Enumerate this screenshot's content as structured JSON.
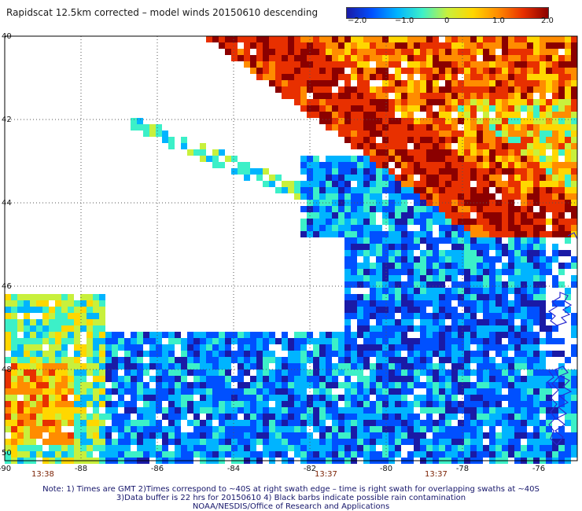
{
  "title": "Rapidscat 12.5km corrected – model winds 20150610 descending",
  "colorbar": {
    "ticks": [
      "−2.0",
      "−1.0",
      "0",
      "1.0",
      "2.0"
    ],
    "min": -2.0,
    "max": 2.0,
    "colors": [
      "#1a1aa6",
      "#0050ff",
      "#00b4ff",
      "#3cf0c8",
      "#c8f03c",
      "#ffd700",
      "#ff8c00",
      "#e83000",
      "#8b0000"
    ]
  },
  "map": {
    "lat_labels": [
      "40",
      "42",
      "44",
      "46",
      "48",
      "50"
    ],
    "lon_labels": [
      "-90",
      "-88",
      "-86",
      "-84",
      "-82",
      "-80",
      "-78",
      "-76"
    ]
  },
  "swath_times": [
    "13:38",
    "13:37",
    "13:37"
  ],
  "notes": {
    "line1": "Note: 1) Times are GMT 2)Times correspond to ~40S at right swath edge – time is right swath for overlapping swaths at ~40S",
    "line2": "3)Data buffer is 22 hrs for 20150610 4) Black barbs indicate possible rain contamination",
    "line3": "NOAA/NESDIS/Office of Research and Applications"
  }
}
